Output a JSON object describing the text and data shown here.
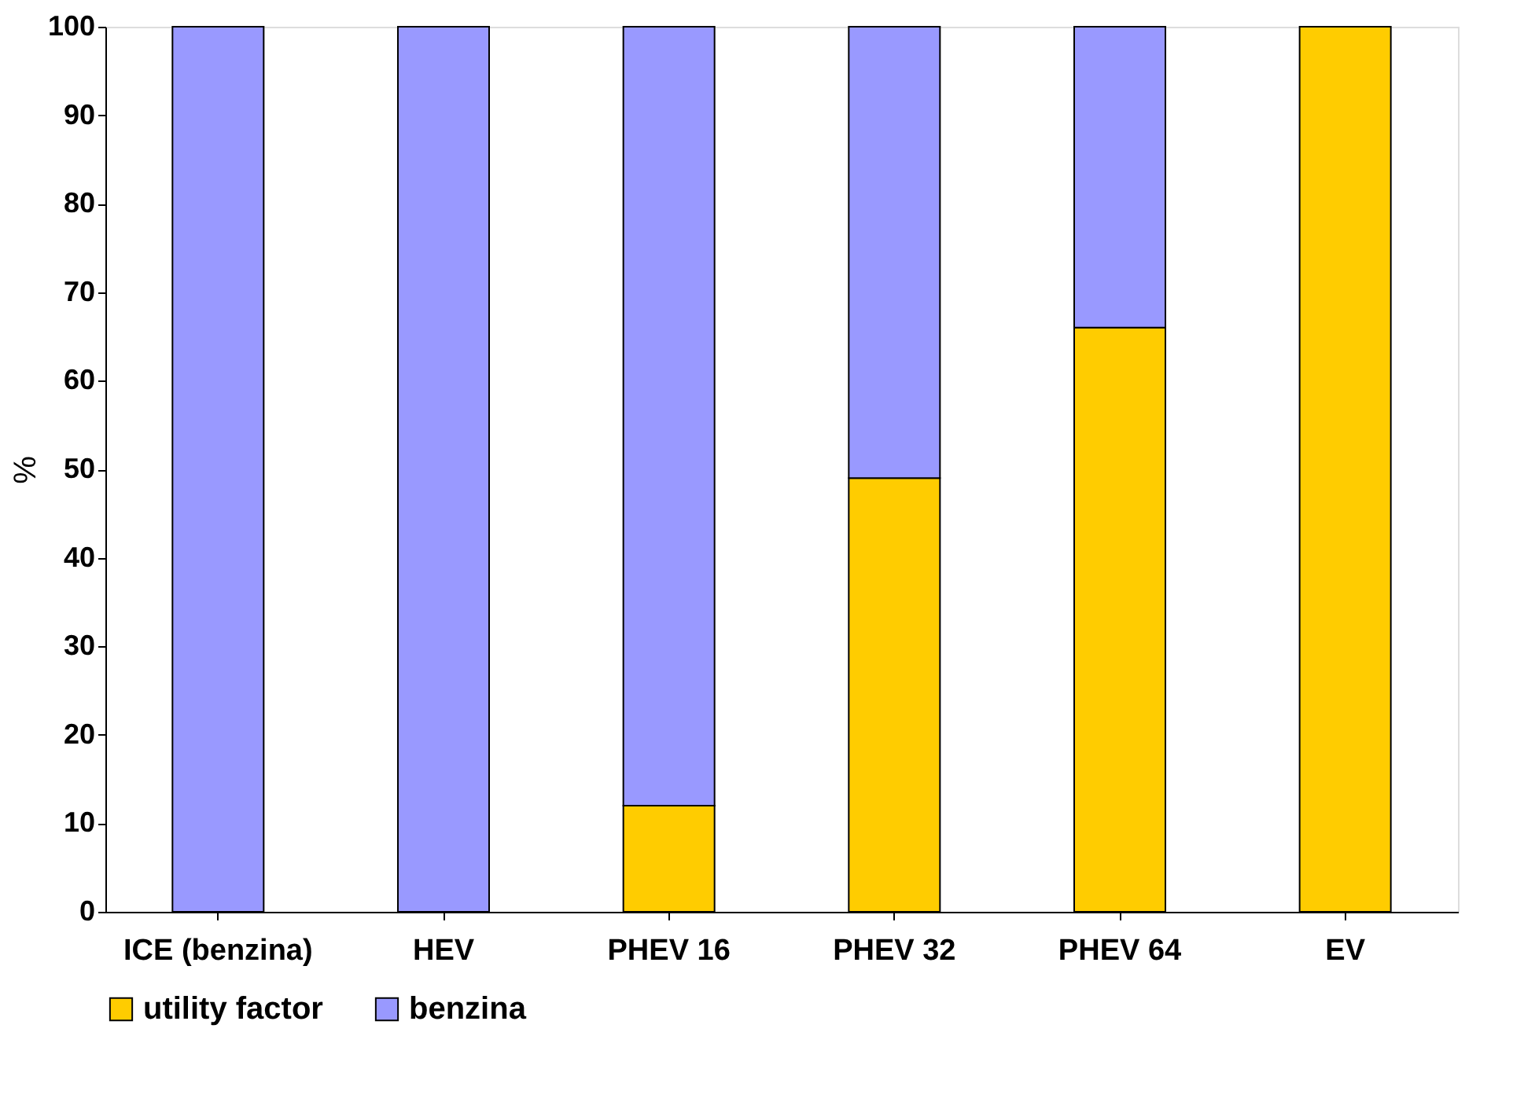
{
  "chart_data": {
    "type": "bar",
    "stacked": true,
    "ylabel": "%",
    "categories": [
      "ICE (benzina)",
      "HEV",
      "PHEV 16",
      "PHEV 32",
      "PHEV 64",
      "EV"
    ],
    "series": [
      {
        "name": "utility factor",
        "color": "#ffcc00",
        "values": [
          0,
          0,
          12,
          49,
          66,
          100
        ]
      },
      {
        "name": "benzina",
        "color": "#9999ff",
        "values": [
          100,
          100,
          88,
          51,
          34,
          0
        ]
      }
    ],
    "ylim": [
      0,
      100
    ],
    "yticks": [
      0,
      10,
      20,
      30,
      40,
      50,
      60,
      70,
      80,
      90,
      100
    ],
    "grid": false,
    "legend": "bottom"
  }
}
